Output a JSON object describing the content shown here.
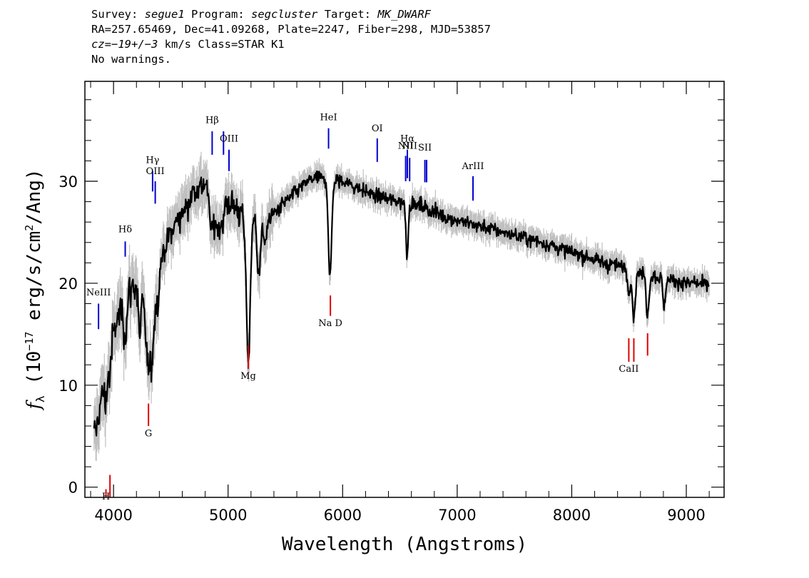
{
  "header": {
    "survey_key": "Survey:",
    "survey": "segue1",
    "program_key": "Program:",
    "program": "segcluster",
    "target_key": "Target:",
    "target": "MK_DWARF",
    "line2": "RA=257.65469, Dec=41.09268, Plate=2247, Fiber=298, MJD=53857",
    "cz": "cz=−19+/−3",
    "cz_units": " km/s Class=STAR K1",
    "warnings": "No warnings."
  },
  "chart_data": {
    "type": "line",
    "xlabel": "Wavelength (Angstroms)",
    "ylabel_prefix": "f",
    "ylabel_sub": "λ",
    "ylabel_main": " (10",
    "ylabel_exp": "−17",
    "ylabel_rest": " erg/s/cm",
    "ylabel_exp2": "2",
    "ylabel_end": "/Ang)",
    "xlim": [
      3750,
      9330
    ],
    "ylim": [
      -1.0,
      39.8
    ],
    "xticks": [
      4000,
      5000,
      6000,
      7000,
      8000,
      9000
    ],
    "xtick_labels": [
      "4000",
      "5000",
      "6000",
      "7000",
      "8000",
      "9000"
    ],
    "yticks": [
      0,
      10,
      20,
      30
    ],
    "ytick_labels": [
      "0",
      "10",
      "20",
      "30"
    ],
    "continuum_points": [
      [
        3820,
        4
      ],
      [
        3900,
        9
      ],
      [
        4000,
        15
      ],
      [
        4100,
        19
      ],
      [
        4200,
        20
      ],
      [
        4300,
        20
      ],
      [
        4400,
        22
      ],
      [
        4500,
        25
      ],
      [
        4600,
        27
      ],
      [
        4700,
        29
      ],
      [
        4800,
        30
      ],
      [
        4900,
        28.5
      ],
      [
        5000,
        28
      ],
      [
        5100,
        27
      ],
      [
        5200,
        26.5
      ],
      [
        5300,
        26.5
      ],
      [
        5400,
        26.8
      ],
      [
        5500,
        28
      ],
      [
        5600,
        29
      ],
      [
        5700,
        30
      ],
      [
        5800,
        30.3
      ],
      [
        5900,
        30
      ],
      [
        6000,
        30
      ],
      [
        6100,
        29.5
      ],
      [
        6200,
        29
      ],
      [
        6300,
        28.5
      ],
      [
        6400,
        28.2
      ],
      [
        6500,
        28
      ],
      [
        6600,
        27.8
      ],
      [
        6700,
        27.5
      ],
      [
        6800,
        27
      ],
      [
        6900,
        26.5
      ],
      [
        7000,
        26.2
      ],
      [
        7200,
        25.6
      ],
      [
        7400,
        25
      ],
      [
        7600,
        24.4
      ],
      [
        7800,
        23.8
      ],
      [
        8000,
        23
      ],
      [
        8200,
        22.3
      ],
      [
        8400,
        21.7
      ],
      [
        8600,
        21
      ],
      [
        8800,
        20.5
      ],
      [
        9000,
        20
      ],
      [
        9200,
        19.8
      ]
    ],
    "absorption_features": [
      [
        3934,
        2.5,
        12
      ],
      [
        3969,
        2.0,
        10
      ],
      [
        4102,
        4,
        15
      ],
      [
        4227,
        5,
        12
      ],
      [
        4305,
        8,
        28
      ],
      [
        4340,
        4,
        18
      ],
      [
        4384,
        3,
        15
      ],
      [
        4861,
        4,
        25
      ],
      [
        4920,
        3,
        15
      ],
      [
        4957,
        2.5,
        12
      ],
      [
        5167,
        7,
        16
      ],
      [
        5183,
        9,
        14
      ],
      [
        5270,
        5,
        18
      ],
      [
        5328,
        3,
        12
      ],
      [
        5890,
        9.5,
        14
      ],
      [
        6563,
        5,
        10
      ],
      [
        8498,
        2.5,
        10
      ],
      [
        8542,
        4.5,
        12
      ],
      [
        8662,
        4,
        12
      ],
      [
        8806,
        3,
        10
      ]
    ],
    "series": [
      {
        "style": "error",
        "color": "#c0c0c0"
      },
      {
        "style": "flux",
        "color": "#000000"
      }
    ],
    "emission_lines": [
      {
        "label": "NeIII",
        "wavelength": 3869,
        "y_top": 18.0,
        "y_bot": 15.5,
        "label_y": 18.8,
        "color": "#0000d0"
      },
      {
        "label": "Hδ",
        "wavelength": 4102,
        "y_top": 24.1,
        "y_bot": 22.6,
        "label_y": 25.0,
        "color": "#0000d0"
      },
      {
        "label": "Hγ",
        "wavelength": 4341,
        "y_top": 31.0,
        "y_bot": 29.0,
        "label_y": 31.8,
        "color": "#0000d0"
      },
      {
        "label": "OIII",
        "wavelength": 4364,
        "y_top": 30.0,
        "y_bot": 27.8,
        "label_y": 30.7,
        "color": "#0000d0"
      },
      {
        "label": "Hβ",
        "wavelength": 4861,
        "y_top": 34.9,
        "y_bot": 32.6,
        "label_y": 35.7,
        "color": "#0000d0"
      },
      {
        "label": "OIII",
        "wavelength": 4960,
        "y_top": 34.9,
        "y_bot": 32.6,
        "label_y": null,
        "color": "#0000d0"
      },
      {
        "label": "OIII",
        "wavelength": 5008,
        "y_top": 33.1,
        "y_bot": 31.0,
        "label_y": 33.9,
        "color": "#0000d0"
      },
      {
        "label": "HeI",
        "wavelength": 5877,
        "y_top": 35.2,
        "y_bot": 33.2,
        "label_y": 36.0,
        "color": "#0000d0"
      },
      {
        "label": "OI",
        "wavelength": 6302,
        "y_top": 34.2,
        "y_bot": 31.9,
        "label_y": 34.9,
        "color": "#0000d0"
      },
      {
        "label": "NII",
        "wavelength": 6550,
        "y_top": 32.5,
        "y_bot": 30.0,
        "label_y": 33.2,
        "color": "#0000d0"
      },
      {
        "label": "Hα",
        "wavelength": 6565,
        "y_top": 33.1,
        "y_bot": 30.3,
        "label_y": 33.9,
        "color": "#0000d0"
      },
      {
        "label": "NII",
        "wavelength": 6585,
        "y_top": 32.3,
        "y_bot": 30.0,
        "label_y": 33.2,
        "color": "#0000d0"
      },
      {
        "label": "SII",
        "wavelength": 6718,
        "y_top": 32.1,
        "y_bot": 29.9,
        "label_y": 33.0,
        "color": "#0000d0"
      },
      {
        "label": "SII",
        "wavelength": 6733,
        "y_top": 32.1,
        "y_bot": 29.9,
        "label_y": null,
        "color": "#0000d0"
      },
      {
        "label": "ArIII",
        "wavelength": 7138,
        "y_top": 30.5,
        "y_bot": 28.1,
        "label_y": 31.2,
        "color": "#0000d0"
      }
    ],
    "absorption_lines": [
      {
        "label": "H",
        "wavelength": 3934,
        "y_top": -0.2,
        "y_bot": -1.0,
        "label_y": -1.2,
        "color": "#e00000"
      },
      {
        "label": "",
        "wavelength": 3969,
        "y_top": 1.2,
        "y_bot": -1.0,
        "label_y": null,
        "color": "#e00000"
      },
      {
        "label": "G",
        "wavelength": 4305,
        "y_top": 8.2,
        "y_bot": 6.0,
        "label_y": 5.0,
        "color": "#e00000"
      },
      {
        "label": "Mg",
        "wavelength": 5176,
        "y_top": 13.9,
        "y_bot": 11.6,
        "label_y": 10.6,
        "color": "#e00000"
      },
      {
        "label": "Na D",
        "wavelength": 5893,
        "y_top": 18.8,
        "y_bot": 16.8,
        "label_y": 15.8,
        "color": "#e00000"
      },
      {
        "label": "CaII",
        "wavelength": 8498,
        "y_top": 14.6,
        "y_bot": 12.3,
        "label_y": 11.3,
        "color": "#e00000"
      },
      {
        "label": "",
        "wavelength": 8542,
        "y_top": 14.6,
        "y_bot": 12.3,
        "label_y": null,
        "color": "#e00000"
      },
      {
        "label": "",
        "wavelength": 8662,
        "y_top": 15.1,
        "y_bot": 12.9,
        "label_y": null,
        "color": "#e00000"
      }
    ]
  }
}
